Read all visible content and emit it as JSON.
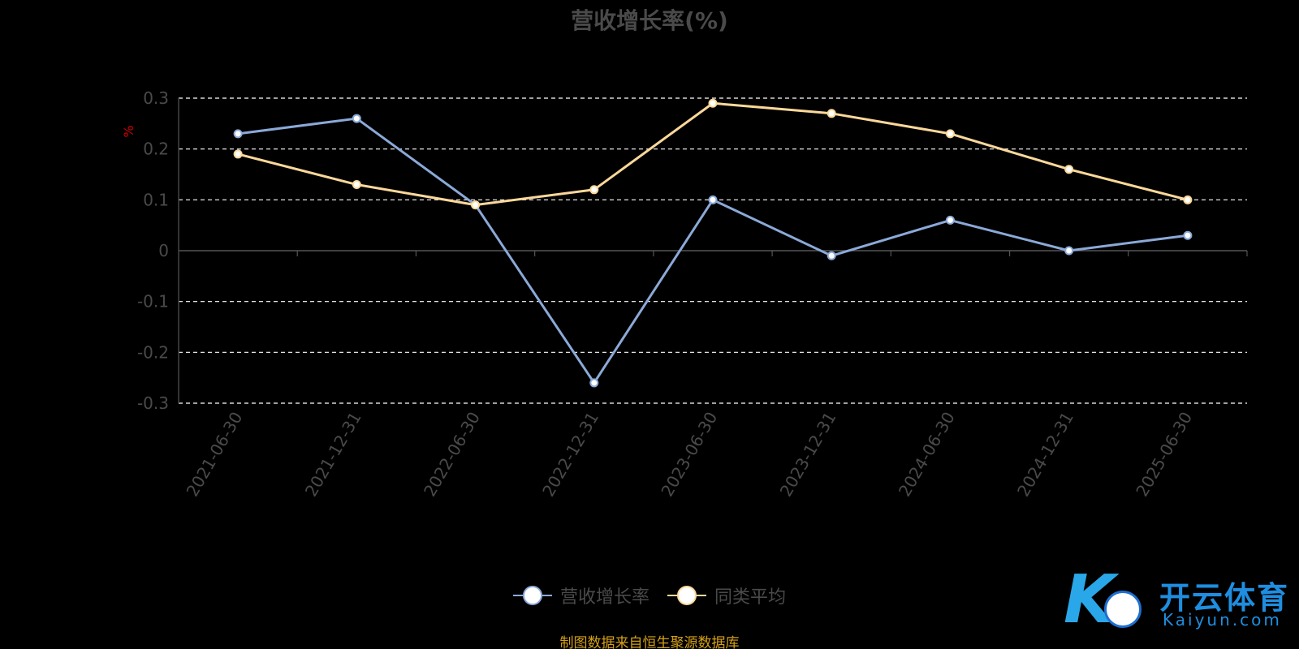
{
  "title": "营收增长率(%)",
  "footer_note": "制图数据来自恒生聚源数据库",
  "watermark": {
    "brand_cn": "开云体育",
    "brand_en": "Kaiyun.com"
  },
  "colors": {
    "background": "#000000",
    "series_revenue": "#8ba9d8",
    "series_average": "#fbd89a",
    "grid": "#ffffff",
    "axis_text": "#4a4a4a",
    "yaxis_label": "#cc0000",
    "footer": "#d4a017"
  },
  "chart_data": {
    "type": "line",
    "title": "营收增长率(%)",
    "xlabel": "",
    "ylabel": "%",
    "ylim": [
      -0.3,
      0.3
    ],
    "yticks": [
      0.3,
      0.2,
      0.1,
      0,
      -0.1,
      -0.2,
      -0.3
    ],
    "ytick_labels": [
      "0.3",
      "0.2",
      "0.1",
      "0",
      "-0.1",
      "-0.2",
      "-0.3"
    ],
    "grid": true,
    "legend_position": "bottom",
    "categories": [
      "2021-06-30",
      "2021-12-31",
      "2022-06-30",
      "2022-12-31",
      "2023-06-30",
      "2023-12-31",
      "2024-06-30",
      "2024-12-31",
      "2025-06-30"
    ],
    "series": [
      {
        "name": "营收增长率",
        "color": "#8ba9d8",
        "values": [
          0.23,
          0.26,
          0.09,
          -0.26,
          0.1,
          -0.01,
          0.06,
          0.0,
          0.03
        ]
      },
      {
        "name": "同类平均",
        "color": "#fbd89a",
        "values": [
          0.19,
          0.13,
          0.09,
          0.12,
          0.29,
          0.27,
          0.23,
          0.16,
          0.1
        ]
      }
    ]
  }
}
